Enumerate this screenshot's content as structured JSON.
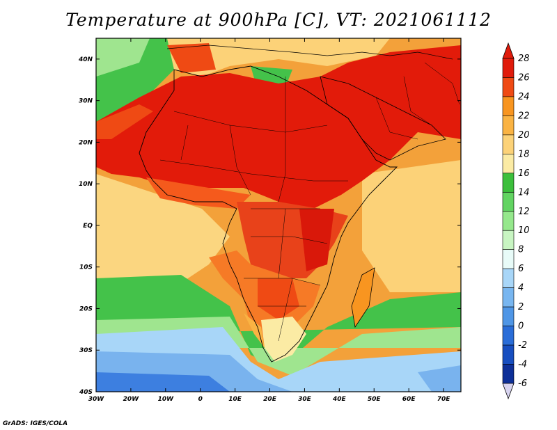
{
  "title": "Temperature at 900hPa [C], VT: 2021061112",
  "credit": "GrADS: IGES/COLA",
  "map": {
    "lat_ticks": [
      "40N",
      "30N",
      "20N",
      "10N",
      "EQ",
      "10S",
      "20S",
      "30S",
      "40S"
    ],
    "lon_ticks": [
      "30W",
      "20W",
      "10W",
      "0",
      "10E",
      "20E",
      "30E",
      "40E",
      "50E",
      "60E",
      "70E"
    ],
    "lon_range": [
      -30,
      75
    ],
    "lat_range": [
      -40,
      45
    ]
  },
  "colorbar": {
    "labels": [
      "28",
      "26",
      "24",
      "22",
      "20",
      "18",
      "16",
      "14",
      "12",
      "10",
      "8",
      "6",
      "4",
      "2",
      "0",
      "-2",
      "-4",
      "-6"
    ],
    "colors": [
      "#e01b0b",
      "#ef4a14",
      "#f89520",
      "#fab343",
      "#fcd278",
      "#fbeba4",
      "#3cbf3c",
      "#62d462",
      "#95e88c",
      "#c8f5c2",
      "#e8fbf8",
      "#a8d6f8",
      "#78b6f0",
      "#4f96e6",
      "#2a6dd8",
      "#174ec0",
      "#0d2f98",
      "#1a1a6e"
    ]
  },
  "palette": {
    "ocean_warm": "#fbd680",
    "ocean_orange": "#f7a535",
    "land_hot": "#e21b0a",
    "land_warm": "#f55a1c",
    "green": "#44c24a",
    "light_green": "#9fe58f",
    "cold_blue": "#79b3ee",
    "deep_blue": "#3d7fe0"
  }
}
